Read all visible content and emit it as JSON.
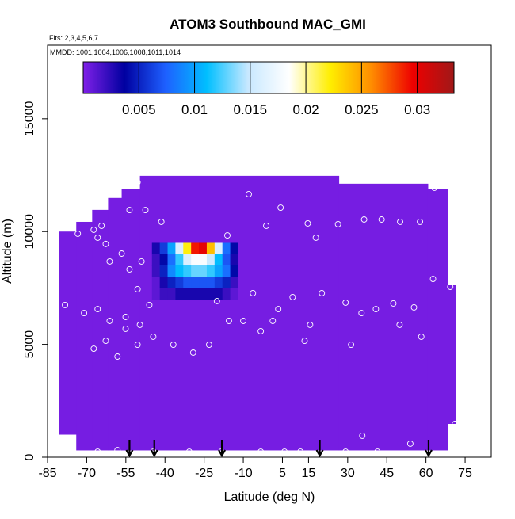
{
  "chart_data": {
    "type": "heatmap",
    "title": "ATOM3 Southbound MAC_GMI",
    "flights_note": "Flts: 2,3,4,5,6,7",
    "dates_note": "MMDD: 1001,1004,1006,1008,1011,1014",
    "xlabel": "Latitude (deg N)",
    "ylabel": "Altitude (m)",
    "xlim": [
      -85,
      85
    ],
    "ylim": [
      0,
      18260
    ],
    "xticks": [
      -85,
      -70,
      -55,
      -40,
      -25,
      -10,
      5,
      15,
      30,
      45,
      60,
      75
    ],
    "yticks": [
      0,
      5000,
      10000,
      15000
    ],
    "colorbar": {
      "lim": [
        0,
        0.0333
      ],
      "ticks": [
        0.005,
        0.01,
        0.015,
        0.02,
        0.025,
        0.03
      ],
      "colors": [
        "#8020e8",
        "#0000a0",
        "#1e60ff",
        "#00bfff",
        "#c8e8ff",
        "#ffffff",
        "#ffee00",
        "#ff8c00",
        "#ee0000",
        "#a01818"
      ]
    },
    "envelope": {
      "lat_edges": [
        -80.7,
        -74,
        -67.9,
        -61.8,
        -56.6,
        -49.6,
        26.6,
        60.7,
        68.4,
        71.4
      ],
      "top": [
        10000,
        10430,
        10960,
        11490,
        11900,
        12470,
        12120,
        11900,
        7620
      ],
      "bottom": [
        1000,
        300,
        300,
        300,
        300,
        300,
        300,
        300,
        1475
      ],
      "value": 0.0003
    },
    "hotspot": {
      "lat_edges": [
        -45,
        -42,
        -39,
        -36,
        -33,
        -30,
        -27,
        -24,
        -21,
        -18,
        -15,
        -12
      ],
      "alt_edges": [
        9500,
        9000,
        8500,
        8000,
        7500,
        7000
      ],
      "values": [
        [
          0.003,
          0.006,
          0.01,
          0.016,
          0.022,
          0.029,
          0.03,
          0.024,
          0.016,
          0.008,
          0.004
        ],
        [
          0.002,
          0.004,
          0.008,
          0.012,
          0.016,
          0.018,
          0.018,
          0.015,
          0.011,
          0.007,
          0.003
        ],
        [
          0.002,
          0.005,
          0.009,
          0.011,
          0.012,
          0.013,
          0.013,
          0.012,
          0.01,
          0.008,
          0.004
        ],
        [
          0.001,
          0.003,
          0.005,
          0.006,
          0.007,
          0.007,
          0.007,
          0.007,
          0.006,
          0.005,
          0.002
        ],
        [
          0.001,
          0.002,
          0.002,
          0.003,
          0.003,
          0.003,
          0.003,
          0.003,
          0.003,
          0.002,
          0.001
        ]
      ]
    },
    "points": {
      "color": "#ffffff",
      "x": [
        -67.3,
        -64.3,
        -65.8,
        -62.7,
        -56.6,
        -61.2,
        -53.6,
        -49.0,
        -50.5,
        -46.0,
        -55.1,
        -61.2,
        -65.8,
        -71.0,
        -78.3,
        -73.4,
        -53.6,
        -47.5,
        -41.4,
        -50.5,
        -49.6,
        -55.1,
        -67.3,
        -62.7,
        -58.2,
        -50.5,
        -44.5,
        -36.8,
        -29.2,
        -23.1,
        -20.1,
        -15.5,
        -6.3,
        -10.0,
        -3.3,
        1.3,
        3.4,
        8.9,
        15.6,
        13.5,
        20.1,
        29.2,
        31.3,
        35.3,
        40.8,
        47.5,
        49.9,
        55.4,
        58.2,
        62.7,
        69.3,
        -7.9,
        -1.2,
        4.3,
        14.7,
        17.8,
        26.3,
        36.3,
        43.0,
        50.1,
        57.7,
        -16.1,
        63.2,
        -44.5,
        -30.7,
        -18.5,
        -3.3,
        5.8,
        11.9,
        29.2,
        41.4,
        54.0,
        35.6,
        -65.8,
        -58.2,
        71.1
      ],
      "y": [
        10080,
        10255,
        9730,
        9450,
        9025,
        8675,
        8325,
        8675,
        7445,
        6745,
        6215,
        6040,
        6565,
        6390,
        6745,
        9905,
        10955,
        10955,
        10430,
        12185,
        5865,
        5690,
        4810,
        5160,
        4460,
        4985,
        5340,
        4985,
        4635,
        4985,
        6920,
        6040,
        7270,
        6040,
        5585,
        6040,
        6565,
        7095,
        5865,
        5160,
        7270,
        6850,
        4985,
        6390,
        6565,
        6815,
        5865,
        6640,
        5340,
        7900,
        7550,
        11660,
        10255,
        11060,
        10360,
        9730,
        10325,
        10535,
        10535,
        10430,
        10430,
        9830,
        11940,
        245,
        245,
        245,
        245,
        245,
        245,
        245,
        245,
        600,
        950,
        245,
        315,
        1475
      ]
    },
    "arrows": {
      "color": "#000000",
      "x": [
        -53.6,
        -44.1,
        -18.2,
        19.3,
        61.0
      ]
    }
  }
}
